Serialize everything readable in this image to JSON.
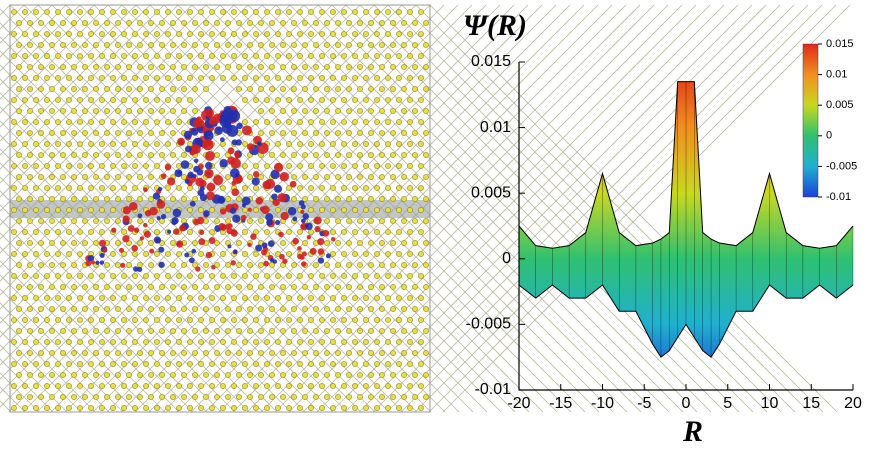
{
  "chart_data": {
    "type": "surface",
    "title": "Ψ(R)",
    "x_label": "R",
    "x": [
      -20,
      -18,
      -16,
      -14,
      -12,
      -10,
      -8,
      -6,
      -4,
      -3,
      -2,
      -1,
      0,
      1,
      2,
      3,
      4,
      6,
      8,
      10,
      12,
      14,
      16,
      18,
      20
    ],
    "series": [
      {
        "values": [
          0.0025,
          0.001,
          0.0008,
          0.001,
          0.002,
          0.0065,
          0.002,
          0.001,
          0.0012,
          0.0015,
          0.002,
          0.0135,
          0.0135,
          0.0135,
          0.002,
          0.0015,
          0.0012,
          0.001,
          0.002,
          0.0065,
          0.002,
          0.001,
          0.0008,
          0.001,
          0.0025
        ]
      },
      {
        "values": [
          -0.002,
          -0.003,
          -0.002,
          -0.003,
          -0.003,
          -0.002,
          -0.004,
          -0.004,
          -0.0065,
          -0.0075,
          -0.007,
          -0.006,
          -0.005,
          -0.006,
          -0.007,
          -0.0075,
          -0.0065,
          -0.004,
          -0.004,
          -0.002,
          -0.003,
          -0.003,
          -0.002,
          -0.003,
          -0.002
        ]
      }
    ],
    "xlim": [
      -20,
      20
    ],
    "xticks": [
      -20,
      -15,
      -10,
      -5,
      0,
      5,
      10,
      15,
      20
    ],
    "ylim": [
      -0.01,
      0.015
    ],
    "yticks": [
      -0.01,
      -0.005,
      0,
      0.005,
      0.01,
      0.015
    ],
    "colormap": [
      "#1f3fd8",
      "#1fb0d0",
      "#30c070",
      "#c8d820",
      "#f09020",
      "#e02818"
    ],
    "clim": [
      -0.01,
      0.015
    ],
    "cticks": [
      0.015,
      0.01,
      0.005,
      0,
      -0.005,
      -0.01
    ]
  }
}
